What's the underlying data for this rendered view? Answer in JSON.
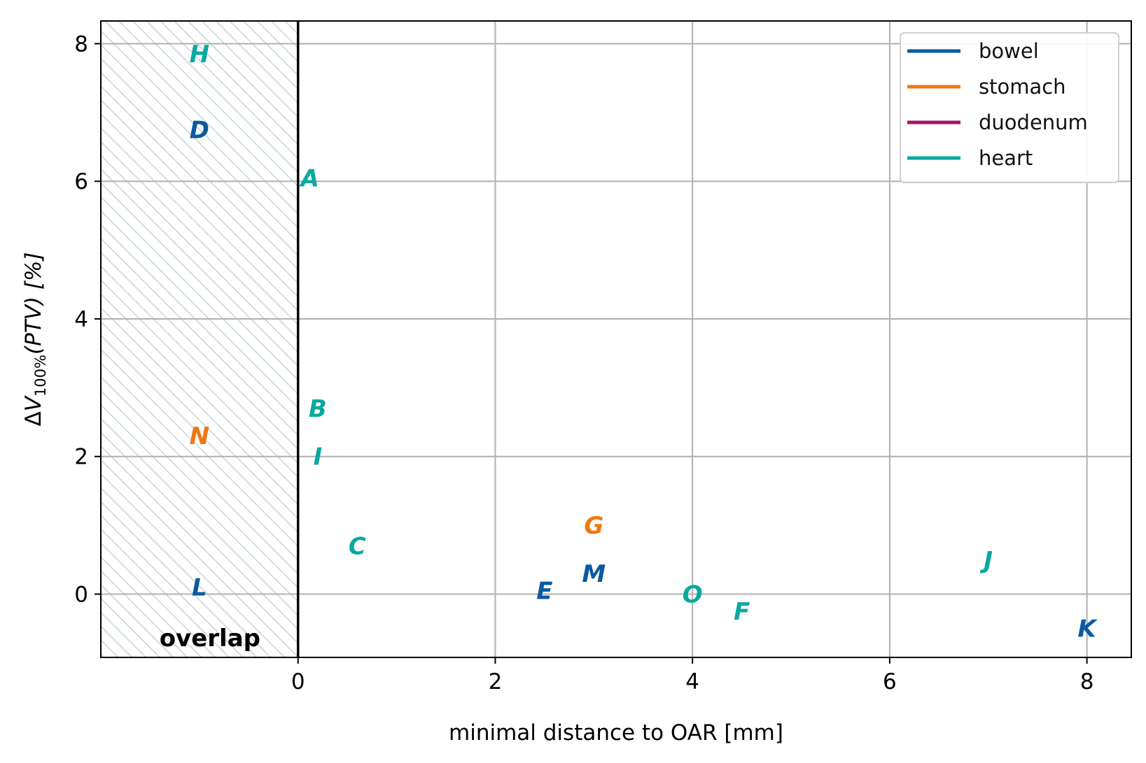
{
  "chart_data": {
    "type": "scatter",
    "xlabel": "minimal distance to OAR [mm]",
    "ylabel_parts": {
      "delta": "Δ",
      "v": "V",
      "sub": "100%",
      "rest": "(PTV) [%]"
    },
    "xlim": [
      -2,
      8.45
    ],
    "ylim": [
      -0.92,
      8.33
    ],
    "x_ticks": [
      0,
      2,
      4,
      6,
      8
    ],
    "y_ticks": [
      0,
      2,
      4,
      6,
      8
    ],
    "grid": true,
    "legend_position": "top-right",
    "overlap_region": {
      "x_from": -2,
      "x_to": 0,
      "label": "overlap"
    },
    "series": [
      {
        "name": "bowel",
        "color": "#0a5aa0"
      },
      {
        "name": "stomach",
        "color": "#ee7711"
      },
      {
        "name": "duodenum",
        "color": "#a8125f"
      },
      {
        "name": "heart",
        "color": "#0aa9a0"
      }
    ],
    "points": [
      {
        "label": "H",
        "series": "heart",
        "x": -1.0,
        "y": 7.85
      },
      {
        "label": "D",
        "series": "bowel",
        "x": -1.0,
        "y": 6.75
      },
      {
        "label": "A",
        "series": "heart",
        "x": 0.12,
        "y": 6.05
      },
      {
        "label": "B",
        "series": "heart",
        "x": 0.2,
        "y": 2.7
      },
      {
        "label": "N",
        "series": "stomach",
        "x": -1.0,
        "y": 2.3
      },
      {
        "label": "I",
        "series": "heart",
        "x": 0.2,
        "y": 2.0
      },
      {
        "label": "C",
        "series": "heart",
        "x": 0.6,
        "y": 0.7
      },
      {
        "label": "G",
        "series": "stomach",
        "x": 3.0,
        "y": 1.0
      },
      {
        "label": "M",
        "series": "bowel",
        "x": 3.0,
        "y": 0.3
      },
      {
        "label": "L",
        "series": "bowel",
        "x": -1.0,
        "y": 0.1
      },
      {
        "label": "E",
        "series": "bowel",
        "x": 2.5,
        "y": 0.05
      },
      {
        "label": "O",
        "series": "heart",
        "x": 4.0,
        "y": 0.0
      },
      {
        "label": "F",
        "series": "heart",
        "x": 4.5,
        "y": -0.25
      },
      {
        "label": "J",
        "series": "heart",
        "x": 7.0,
        "y": 0.5
      },
      {
        "label": "K",
        "series": "bowel",
        "x": 8.0,
        "y": -0.5
      }
    ]
  }
}
